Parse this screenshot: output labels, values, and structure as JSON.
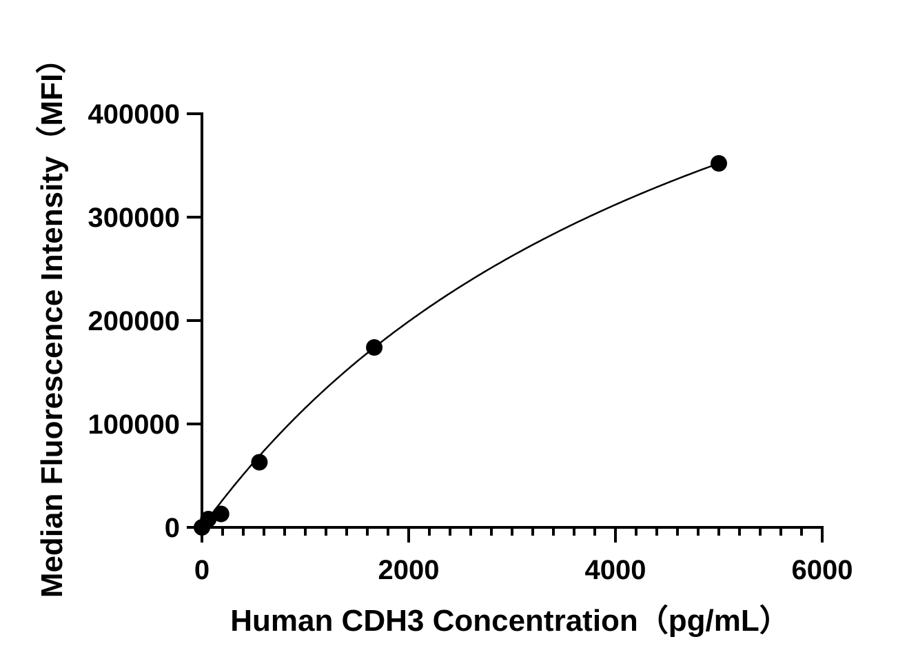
{
  "chart_data": {
    "type": "scatter",
    "title": "",
    "xlabel": "Human CDH3 Concentration（pg/mL）",
    "ylabel": "Median Fluorescence Intensity（MFI）",
    "xlim": [
      0,
      6000
    ],
    "ylim": [
      0,
      400000
    ],
    "x_ticks": [
      "0",
      "2000",
      "4000",
      "6000"
    ],
    "y_ticks": [
      "0",
      "100000",
      "200000",
      "300000",
      "400000"
    ],
    "x_minor_step": 200,
    "grid": false,
    "fit_curve": true,
    "marker_color": "#000000",
    "points": [
      {
        "x": 0,
        "y": 0
      },
      {
        "x": 62,
        "y": 8000
      },
      {
        "x": 185,
        "y": 13000
      },
      {
        "x": 556,
        "y": 63000
      },
      {
        "x": 1667,
        "y": 174000
      },
      {
        "x": 5000,
        "y": 352000
      }
    ]
  }
}
